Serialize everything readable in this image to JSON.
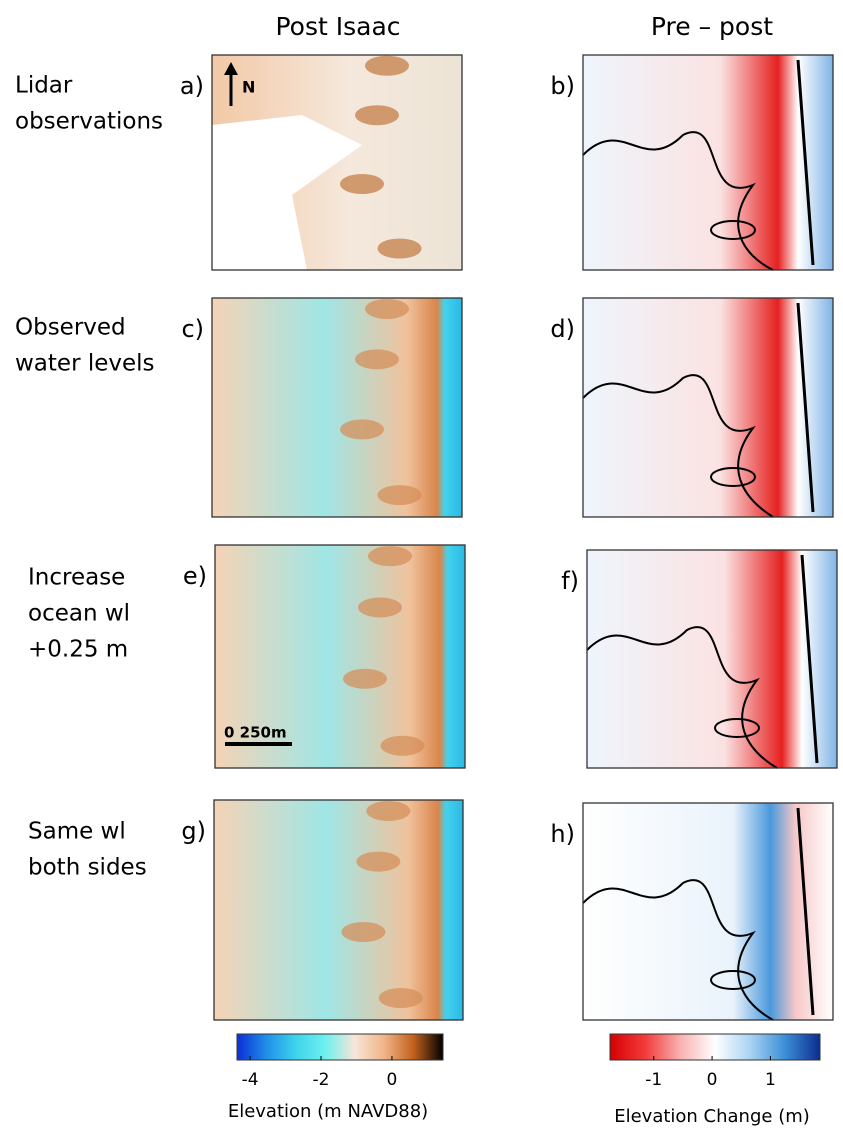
{
  "column_titles": [
    "Post Isaac",
    "Pre – post"
  ],
  "rows": [
    {
      "label_lines": [
        "Lidar",
        "observations"
      ],
      "panels": [
        "a)",
        "b)"
      ]
    },
    {
      "label_lines": [
        "Observed",
        "water levels"
      ],
      "panels": [
        "c)",
        "d)"
      ]
    },
    {
      "label_lines": [
        "Increase",
        "ocean wl",
        "+0.25 m"
      ],
      "panels": [
        "e)",
        "f)"
      ]
    },
    {
      "label_lines": [
        "Same wl",
        "both sides"
      ],
      "panels": [
        "g)",
        "h)"
      ]
    }
  ],
  "north_label": "N",
  "scale_bar_label": "0  250m",
  "colorbars": [
    {
      "label": "Elevation (m NAVD88)",
      "lim": [
        -4.37,
        1.44
      ],
      "ticks": [
        -4,
        -2,
        0
      ],
      "colors": [
        "#0b2fd6",
        "#1f8fe8",
        "#3fd3ec",
        "#6ef0ee",
        "#f6e6d8",
        "#f0b488",
        "#c2601c",
        "#000000"
      ]
    },
    {
      "label": "Elevation Change (m)",
      "lim": [
        -1.75,
        1.85
      ],
      "ticks": [
        -1,
        0,
        1
      ],
      "colors": [
        "#d60000",
        "#f23a3a",
        "#f9b0b0",
        "#ffffff",
        "#aad4f2",
        "#3c8ed6",
        "#0b2d8f"
      ]
    }
  ]
}
